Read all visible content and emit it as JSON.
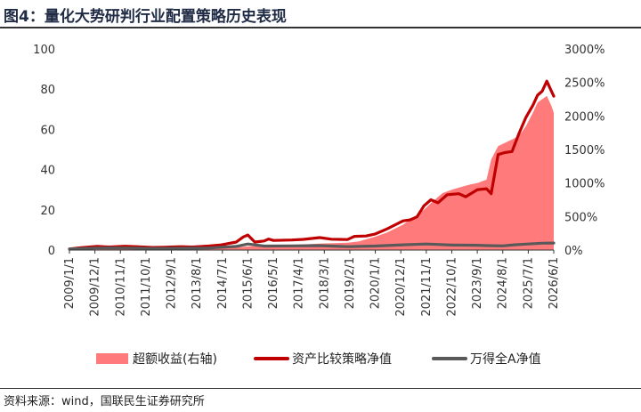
{
  "header": {
    "title": "图4：量化大势研判行业配置策略历史表现"
  },
  "footer": {
    "source": "资料来源：wind，国联民生证券研究所"
  },
  "chart_data": {
    "type": "line",
    "x_tick_labels": [
      "2009/1/1",
      "2009/12/1",
      "2010/11/1",
      "2011/10/1",
      "2012/9/1",
      "2013/8/1",
      "2014/7/1",
      "2015/6/1",
      "2016/5/1",
      "2017/4/1",
      "2018/3/1",
      "2019/2/1",
      "2020/1/1",
      "2020/12/1",
      "2021/11/1",
      "2022/10/1",
      "2023/9/1",
      "2024/8/1",
      "2025/7/1",
      "2026/6/1"
    ],
    "x_range": [
      "2009/1/1",
      "2026/6/1"
    ],
    "y_left": {
      "ticks": [
        "0",
        "20",
        "40",
        "60",
        "80",
        "100"
      ],
      "range": [
        0,
        100
      ]
    },
    "y_right": {
      "ticks": [
        "0%",
        "500%",
        "1000%",
        "1500%",
        "2000%",
        "2500%",
        "3000%"
      ],
      "range": [
        0,
        3000
      ],
      "unit": "%"
    },
    "grid": false,
    "legend_position": "bottom",
    "colors": {
      "excess": "#ff7b7b",
      "strategy": "#c00000",
      "benchmark": "#595959",
      "axis": "#333333"
    },
    "series": [
      {
        "name": "超额收益(右轴)",
        "kind": "area",
        "axis": "right",
        "points": [
          [
            "2009/1/1",
            0
          ],
          [
            "2010/1/1",
            12
          ],
          [
            "2011/1/1",
            18
          ],
          [
            "2012/1/1",
            15
          ],
          [
            "2013/1/1",
            20
          ],
          [
            "2014/1/1",
            25
          ],
          [
            "2015/1/1",
            40
          ],
          [
            "2015/6/1",
            55
          ],
          [
            "2016/1/1",
            60
          ],
          [
            "2017/1/1",
            75
          ],
          [
            "2018/1/1",
            95
          ],
          [
            "2019/1/1",
            110
          ],
          [
            "2019/6/1",
            130
          ],
          [
            "2020/1/1",
            200
          ],
          [
            "2020/6/1",
            260
          ],
          [
            "2021/1/1",
            380
          ],
          [
            "2021/6/1",
            500
          ],
          [
            "2021/10/1",
            600
          ],
          [
            "2022/1/1",
            700
          ],
          [
            "2022/6/1",
            850
          ],
          [
            "2022/10/1",
            900
          ],
          [
            "2023/3/1",
            950
          ],
          [
            "2023/6/1",
            980
          ],
          [
            "2023/9/1",
            1000
          ],
          [
            "2024/1/1",
            1050
          ],
          [
            "2024/3/1",
            1350
          ],
          [
            "2024/6/1",
            1550
          ],
          [
            "2024/9/1",
            1600
          ],
          [
            "2024/12/1",
            1650
          ],
          [
            "2025/3/1",
            1700
          ],
          [
            "2025/6/1",
            1850
          ],
          [
            "2025/9/1",
            2050
          ],
          [
            "2025/11/1",
            2200
          ],
          [
            "2026/1/1",
            2250
          ],
          [
            "2026/3/1",
            2300
          ],
          [
            "2026/5/1",
            2150
          ],
          [
            "2026/6/1",
            2050
          ]
        ]
      },
      {
        "name": "资产比较策略净值",
        "kind": "line",
        "axis": "left",
        "points": [
          [
            "2009/1/1",
            0.5
          ],
          [
            "2009/6/1",
            1.2
          ],
          [
            "2010/1/1",
            1.8
          ],
          [
            "2010/6/1",
            1.5
          ],
          [
            "2011/1/1",
            1.9
          ],
          [
            "2011/6/1",
            1.7
          ],
          [
            "2012/1/1",
            1.3
          ],
          [
            "2012/6/1",
            1.4
          ],
          [
            "2013/1/1",
            1.7
          ],
          [
            "2013/6/1",
            1.5
          ],
          [
            "2014/1/1",
            2.0
          ],
          [
            "2014/6/1",
            2.5
          ],
          [
            "2015/1/1",
            4.0
          ],
          [
            "2015/4/1",
            6.5
          ],
          [
            "2015/6/1",
            7.5
          ],
          [
            "2015/9/1",
            4.0
          ],
          [
            "2016/1/1",
            4.5
          ],
          [
            "2016/3/1",
            5.5
          ],
          [
            "2016/5/1",
            4.8
          ],
          [
            "2017/1/1",
            5.0
          ],
          [
            "2017/6/1",
            5.3
          ],
          [
            "2018/1/1",
            6.2
          ],
          [
            "2018/6/1",
            5.4
          ],
          [
            "2019/1/1",
            5.2
          ],
          [
            "2019/4/1",
            6.8
          ],
          [
            "2019/9/1",
            7.0
          ],
          [
            "2020/1/1",
            8.0
          ],
          [
            "2020/6/1",
            10.5
          ],
          [
            "2021/1/1",
            14.5
          ],
          [
            "2021/4/1",
            15.0
          ],
          [
            "2021/7/1",
            16.5
          ],
          [
            "2021/10/1",
            22.0
          ],
          [
            "2022/1/1",
            25.0
          ],
          [
            "2022/4/1",
            23.5
          ],
          [
            "2022/8/1",
            27.5
          ],
          [
            "2023/1/1",
            28.0
          ],
          [
            "2023/4/1",
            26.5
          ],
          [
            "2023/9/1",
            30.0
          ],
          [
            "2024/1/1",
            30.5
          ],
          [
            "2024/3/1",
            28.0
          ],
          [
            "2024/6/1",
            47.5
          ],
          [
            "2024/9/1",
            48.5
          ],
          [
            "2024/12/1",
            49.0
          ],
          [
            "2025/3/1",
            58.0
          ],
          [
            "2025/6/1",
            66.0
          ],
          [
            "2025/9/1",
            72.0
          ],
          [
            "2025/11/1",
            77.0
          ],
          [
            "2026/1/1",
            79.0
          ],
          [
            "2026/3/1",
            84.0
          ],
          [
            "2026/5/1",
            79.0
          ],
          [
            "2026/6/1",
            76.5
          ]
        ]
      },
      {
        "name": "万得全A净值",
        "kind": "line",
        "axis": "left",
        "points": [
          [
            "2009/1/1",
            0.5
          ],
          [
            "2010/1/1",
            1.0
          ],
          [
            "2011/1/1",
            1.0
          ],
          [
            "2012/1/1",
            0.8
          ],
          [
            "2013/1/1",
            0.9
          ],
          [
            "2014/1/1",
            1.0
          ],
          [
            "2015/1/1",
            1.8
          ],
          [
            "2015/6/1",
            3.0
          ],
          [
            "2016/1/1",
            2.0
          ],
          [
            "2017/1/1",
            2.1
          ],
          [
            "2018/1/1",
            2.2
          ],
          [
            "2019/1/1",
            1.7
          ],
          [
            "2020/1/1",
            2.0
          ],
          [
            "2021/1/1",
            2.6
          ],
          [
            "2021/11/1",
            3.0
          ],
          [
            "2022/10/1",
            2.5
          ],
          [
            "2023/9/1",
            2.4
          ],
          [
            "2024/1/1",
            2.2
          ],
          [
            "2024/8/1",
            2.1
          ],
          [
            "2025/1/1",
            2.6
          ],
          [
            "2025/7/1",
            3.0
          ],
          [
            "2026/1/1",
            3.4
          ],
          [
            "2026/6/1",
            3.5
          ]
        ]
      }
    ]
  }
}
